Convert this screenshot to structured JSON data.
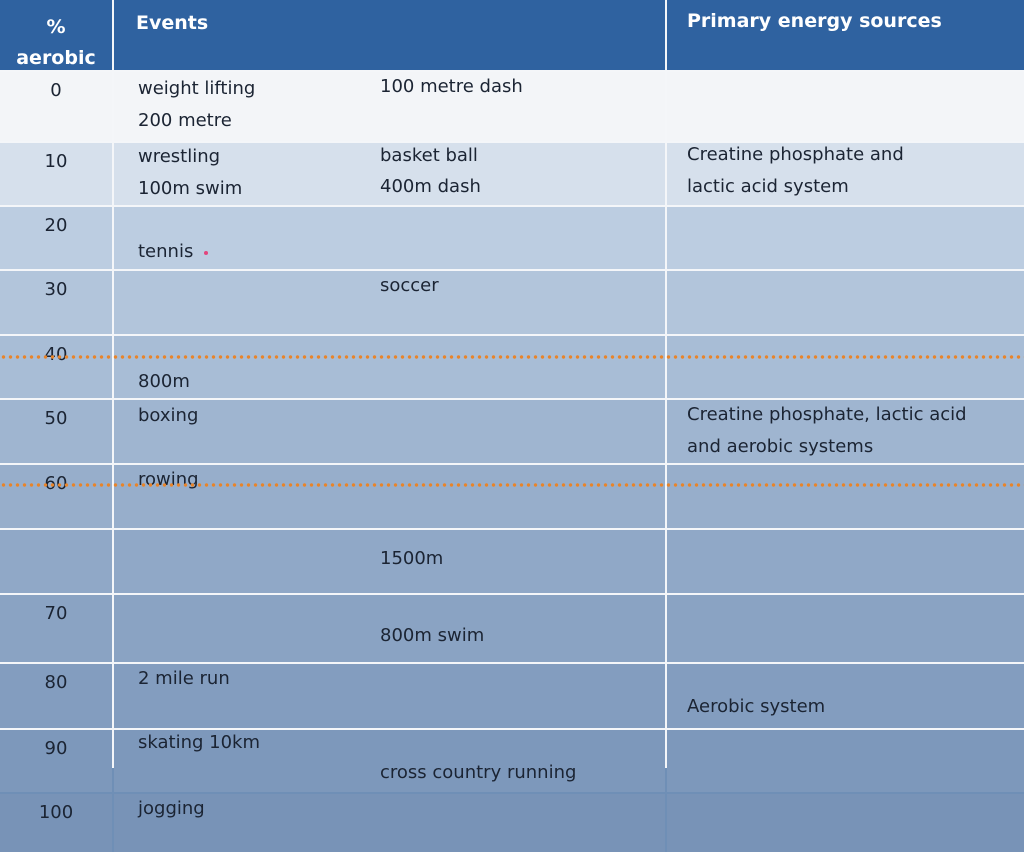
{
  "header": {
    "pct_label": "%",
    "pct_label2": "aerobic",
    "events_label": "Events",
    "sources_label": "Primary energy sources"
  },
  "rows": [
    {
      "pct": "0",
      "events": [
        "weight lifting",
        "100 metre dash",
        "200 metre"
      ],
      "source": ""
    },
    {
      "pct": "10",
      "events": [
        "wrestling",
        "basket ball",
        "100m swim",
        "400m dash"
      ],
      "source": "Creatine phosphate and\nlactic acid system"
    },
    {
      "pct": "20",
      "events": [
        "tennis"
      ],
      "source": ""
    },
    {
      "pct": "30",
      "events": [
        "soccer"
      ],
      "source": ""
    },
    {
      "pct": "40",
      "events": [
        "800m"
      ],
      "source": ""
    },
    {
      "pct": "50",
      "events": [
        "boxing"
      ],
      "source": "Creatine phosphate, lactic acid\nand aerobic systems"
    },
    {
      "pct": "60",
      "events": [
        "rowing"
      ],
      "source": ""
    },
    {
      "pct": "",
      "events": [
        "1500m"
      ],
      "source": ""
    },
    {
      "pct": "70",
      "events": [
        "800m swim"
      ],
      "source": ""
    },
    {
      "pct": "80",
      "events": [
        "2 mile run"
      ],
      "source": "Aerobic system"
    },
    {
      "pct": "90",
      "events": [
        "skating 10km",
        "cross country running"
      ],
      "source": ""
    },
    {
      "pct": "100",
      "events": [
        "jogging"
      ],
      "source": ""
    }
  ],
  "colors": {
    "header_bg": "#2f62a0",
    "divider_dots": "#e8842a"
  }
}
